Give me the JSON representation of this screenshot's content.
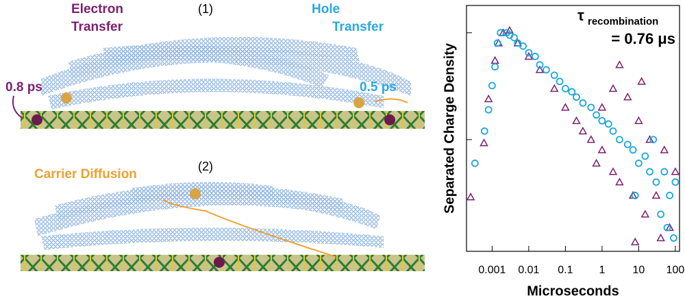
{
  "illustration": {
    "panel_1": "(1)",
    "panel_2": "(2)",
    "electron_transfer": [
      "Electron",
      "Transfer"
    ],
    "hole_transfer": [
      "Hole",
      "Transfer"
    ],
    "electron_time": "0.8 ps",
    "hole_time": "0.5 ps",
    "diffusion": "Carrier Diffusion"
  },
  "chart_data": {
    "type": "scatter",
    "annotation": {
      "symbol": "τ",
      "subscript": "recombination",
      "value": "= 0.76 μs"
    },
    "x_label": "Microseconds",
    "y_label": "Separated Charge Density",
    "log_x": true,
    "log_y": true,
    "xlim": [
      0.0002,
      130
    ],
    "ylim": [
      0.009,
      1.8
    ],
    "xticks": [
      0.001,
      0.01,
      0.1,
      1,
      10,
      100
    ],
    "yticks": [
      0.1,
      1
    ],
    "series": [
      {
        "marker": "triangle",
        "color": "#7b1f6f",
        "x": [
          0.00026,
          0.0006,
          0.0008,
          0.0012,
          0.0015,
          0.002,
          0.003,
          0.005,
          0.01,
          0.02,
          0.05,
          0.1,
          0.2,
          0.3,
          0.5,
          1,
          1,
          2,
          2,
          3,
          5,
          7,
          10,
          15,
          20,
          30,
          50,
          70,
          100,
          12,
          40,
          8,
          3,
          0.7
        ],
        "values": [
          0.029,
          0.093,
          0.24,
          0.55,
          0.8,
          1.0,
          1.05,
          0.8,
          0.6,
          0.45,
          0.3,
          0.2,
          0.15,
          0.12,
          0.1,
          0.08,
          0.2,
          0.05,
          0.3,
          0.04,
          0.25,
          0.03,
          0.15,
          0.02,
          0.1,
          0.03,
          0.08,
          0.015,
          0.05,
          0.35,
          0.012,
          0.011,
          0.5,
          0.06
        ]
      },
      {
        "marker": "circle",
        "color": "#1aa6dd",
        "x": [
          0.00034,
          0.00062,
          0.0008,
          0.001,
          0.0012,
          0.0014,
          0.0017,
          0.0025,
          0.003,
          0.004,
          0.005,
          0.007,
          0.01,
          0.015,
          0.02,
          0.03,
          0.05,
          0.07,
          0.1,
          0.15,
          0.2,
          0.3,
          0.5,
          0.7,
          1,
          1.5,
          2,
          3,
          5,
          7,
          10,
          15,
          20,
          30,
          50,
          70,
          100,
          8,
          40,
          60,
          90,
          25
        ],
        "values": [
          0.06,
          0.12,
          0.19,
          0.32,
          0.48,
          0.8,
          1.0,
          1.0,
          0.95,
          0.9,
          0.8,
          0.75,
          0.65,
          0.6,
          0.5,
          0.45,
          0.4,
          0.35,
          0.3,
          0.28,
          0.25,
          0.22,
          0.2,
          0.17,
          0.15,
          0.14,
          0.12,
          0.1,
          0.09,
          0.08,
          0.06,
          0.07,
          0.05,
          0.04,
          0.05,
          0.03,
          0.04,
          0.03,
          0.02,
          0.015,
          0.012,
          0.1
        ]
      }
    ]
  }
}
